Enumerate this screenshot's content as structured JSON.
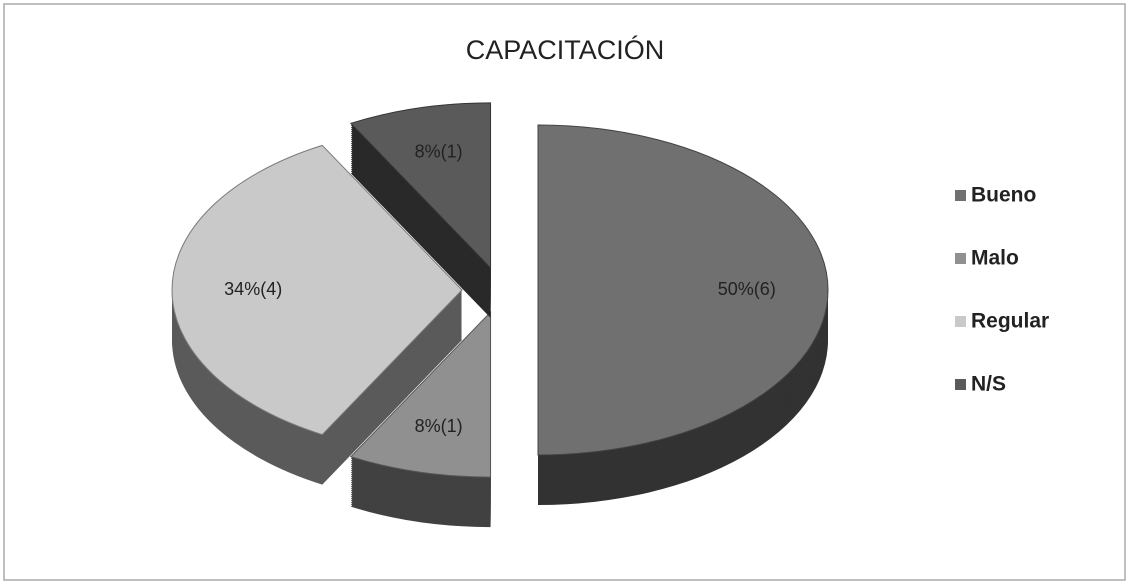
{
  "chart_data": {
    "type": "pie",
    "title": "CAPACITACIÓN",
    "categories": [
      "Bueno",
      "Malo",
      "Regular",
      "N/S"
    ],
    "values": [
      50,
      8,
      34,
      8
    ],
    "value_labels": [
      "50%(6)",
      "8%(1)",
      "34%(4)",
      "8%(1)"
    ],
    "colors": [
      "#707070",
      "#909090",
      "#c9c9c9",
      "#5a5a5a"
    ],
    "legend": "right"
  }
}
